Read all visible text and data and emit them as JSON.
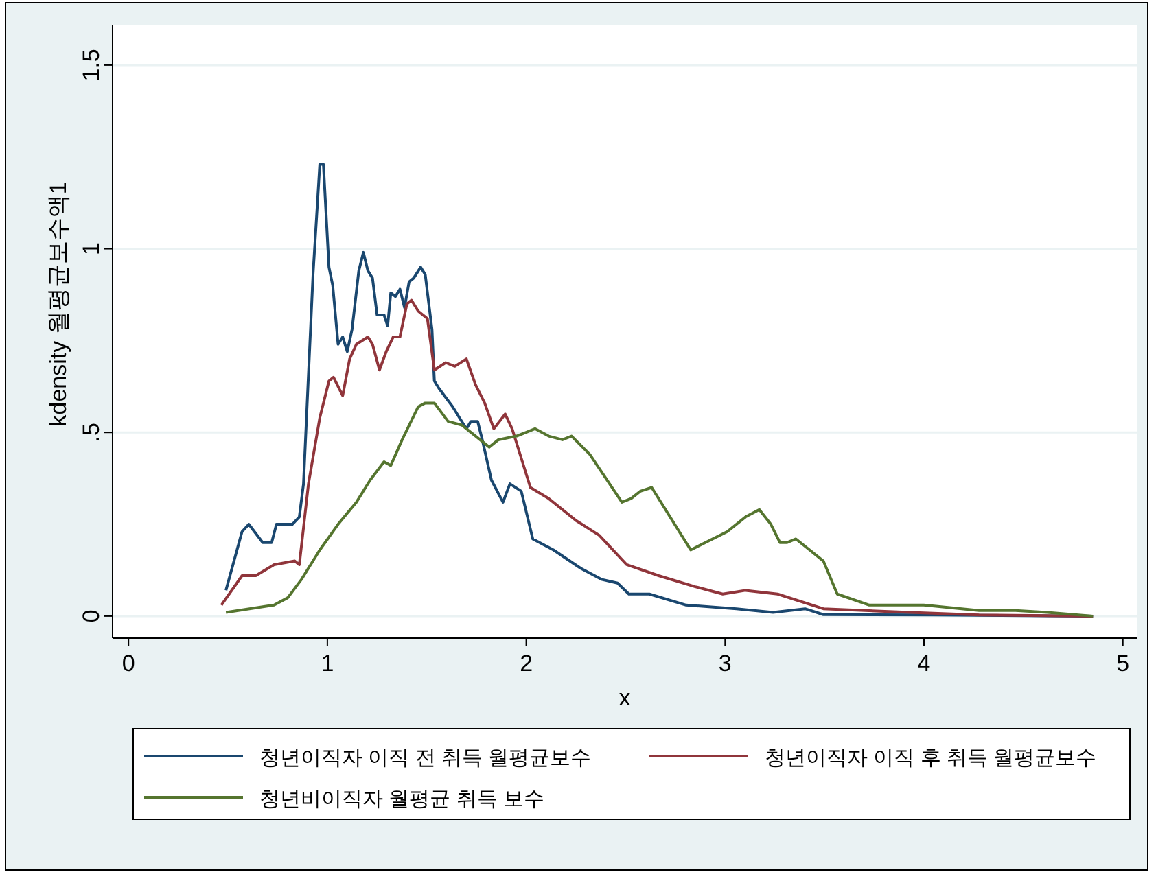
{
  "chart_data": {
    "type": "line",
    "xlabel": "x",
    "ylabel": "kdensity 월평균보수액1",
    "xlim": [
      -0.08,
      5.07
    ],
    "ylim": [
      -0.06,
      1.61
    ],
    "xticks": [
      0,
      1,
      2,
      3,
      4,
      5
    ],
    "yticks": [
      0,
      {
        "value": 0.5,
        "label": ".5"
      },
      1,
      1.5
    ],
    "grid": "y",
    "legend": "bottom",
    "marker": "none",
    "line_style": "solid",
    "series": [
      {
        "name": "청년이직자 이직 전 취득 월평균보수",
        "color": "#1a476f",
        "x": [
          0.49,
          0.571,
          0.605,
          0.675,
          0.72,
          0.744,
          0.824,
          0.859,
          0.88,
          0.928,
          0.962,
          0.98,
          1.008,
          1.027,
          1.054,
          1.077,
          1.1,
          1.124,
          1.158,
          1.181,
          1.204,
          1.227,
          1.25,
          1.285,
          1.303,
          1.319,
          1.342,
          1.365,
          1.388,
          1.411,
          1.434,
          1.469,
          1.492,
          1.526,
          1.538,
          1.561,
          1.63,
          1.664,
          1.699,
          1.722,
          1.756,
          1.779,
          1.825,
          1.883,
          1.918,
          1.975,
          2.033,
          2.137,
          2.274,
          2.378,
          2.459,
          2.516,
          2.619,
          2.804,
          3.057,
          3.241,
          3.402,
          3.494,
          4.05,
          4.85
        ],
        "values": [
          0.07,
          0.23,
          0.25,
          0.2,
          0.2,
          0.25,
          0.25,
          0.27,
          0.36,
          0.93,
          1.23,
          1.23,
          0.95,
          0.9,
          0.74,
          0.76,
          0.72,
          0.78,
          0.94,
          0.99,
          0.94,
          0.92,
          0.82,
          0.82,
          0.79,
          0.88,
          0.87,
          0.89,
          0.84,
          0.91,
          0.92,
          0.95,
          0.93,
          0.78,
          0.64,
          0.62,
          0.57,
          0.54,
          0.51,
          0.53,
          0.53,
          0.48,
          0.37,
          0.31,
          0.36,
          0.34,
          0.21,
          0.18,
          0.13,
          0.1,
          0.09,
          0.06,
          0.06,
          0.03,
          0.02,
          0.01,
          0.02,
          0.004,
          0.003,
          0
        ]
      },
      {
        "name": "청년이직자 이직 후 취득 월평균보수",
        "color": "#90353b",
        "x": [
          0.467,
          0.571,
          0.64,
          0.732,
          0.836,
          0.859,
          0.905,
          0.962,
          1.008,
          1.031,
          1.077,
          1.112,
          1.146,
          1.204,
          1.227,
          1.262,
          1.296,
          1.331,
          1.365,
          1.4,
          1.423,
          1.457,
          1.503,
          1.538,
          1.595,
          1.641,
          1.699,
          1.745,
          1.791,
          1.837,
          1.894,
          1.929,
          2.021,
          2.113,
          2.251,
          2.367,
          2.505,
          2.666,
          2.85,
          2.988,
          3.103,
          3.264,
          3.494,
          3.932,
          4.277,
          4.85
        ],
        "values": [
          0.03,
          0.11,
          0.11,
          0.14,
          0.15,
          0.14,
          0.36,
          0.54,
          0.64,
          0.65,
          0.6,
          0.7,
          0.74,
          0.76,
          0.74,
          0.67,
          0.72,
          0.76,
          0.76,
          0.85,
          0.86,
          0.83,
          0.81,
          0.67,
          0.69,
          0.68,
          0.7,
          0.63,
          0.58,
          0.51,
          0.55,
          0.51,
          0.35,
          0.32,
          0.26,
          0.22,
          0.14,
          0.11,
          0.08,
          0.06,
          0.07,
          0.06,
          0.02,
          0.01,
          0.003,
          0
        ]
      },
      {
        "name": "청년비이직자 월평균 취득 보수",
        "color": "#55752f",
        "x": [
          0.49,
          0.732,
          0.801,
          0.87,
          0.962,
          1.054,
          1.146,
          1.215,
          1.285,
          1.319,
          1.376,
          1.457,
          1.492,
          1.538,
          1.607,
          1.676,
          1.768,
          1.814,
          1.86,
          1.952,
          2.044,
          2.113,
          2.182,
          2.228,
          2.32,
          2.481,
          2.527,
          2.574,
          2.631,
          2.827,
          3.011,
          3.103,
          3.172,
          3.23,
          3.276,
          3.31,
          3.356,
          3.425,
          3.494,
          3.564,
          3.725,
          3.999,
          4.277,
          4.46,
          4.62,
          4.85
        ],
        "values": [
          0.01,
          0.03,
          0.05,
          0.1,
          0.18,
          0.25,
          0.31,
          0.37,
          0.42,
          0.41,
          0.48,
          0.57,
          0.58,
          0.58,
          0.53,
          0.52,
          0.48,
          0.46,
          0.48,
          0.49,
          0.51,
          0.49,
          0.48,
          0.49,
          0.44,
          0.31,
          0.32,
          0.34,
          0.35,
          0.18,
          0.23,
          0.27,
          0.29,
          0.25,
          0.2,
          0.2,
          0.21,
          0.18,
          0.15,
          0.06,
          0.03,
          0.03,
          0.015,
          0.015,
          0.01,
          0
        ]
      }
    ]
  }
}
